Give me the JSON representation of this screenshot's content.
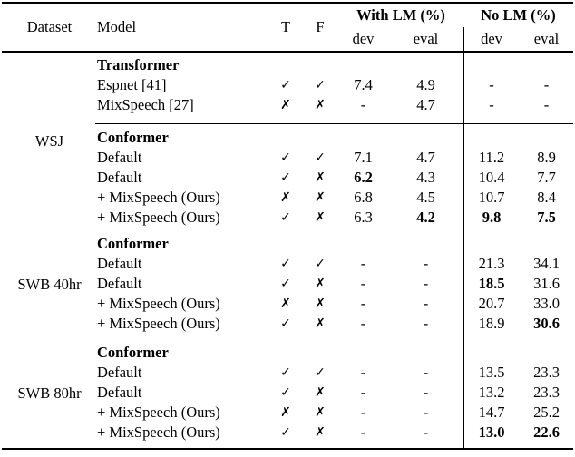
{
  "colors": {
    "text": "#000000",
    "background": "#ffffff",
    "rule": "#000000"
  },
  "table": {
    "header": {
      "dataset": "Dataset",
      "model": "Model",
      "t": "T",
      "f": "F",
      "group_with_lm": "With LM (%)",
      "group_no_lm": "No LM (%)",
      "sub_dev": "dev",
      "sub_eval": "eval"
    },
    "symbols": {
      "check": "✓",
      "cross": "✗"
    },
    "sections": [
      {
        "dataset": "WSJ",
        "rows": [
          {
            "type": "subheader",
            "label": "Transformer"
          },
          {
            "type": "data",
            "model": "Espnet [41]",
            "t": "check",
            "f": "check",
            "values": [
              {
                "v": "7.4"
              },
              {
                "v": "4.9"
              },
              {
                "v": "-"
              },
              {
                "v": "-"
              }
            ]
          },
          {
            "type": "data",
            "model": "MixSpeech [27]",
            "t": "cross",
            "f": "cross",
            "values": [
              {
                "v": "-"
              },
              {
                "v": "4.7"
              },
              {
                "v": "-"
              },
              {
                "v": "-"
              }
            ]
          },
          {
            "type": "midrule"
          },
          {
            "type": "subheader",
            "label": "Conformer"
          },
          {
            "type": "data",
            "model": "Default",
            "t": "check",
            "f": "check",
            "values": [
              {
                "v": "7.1"
              },
              {
                "v": "4.7"
              },
              {
                "v": "11.2"
              },
              {
                "v": "8.9"
              }
            ]
          },
          {
            "type": "data",
            "model": "Default",
            "t": "check",
            "f": "cross",
            "values": [
              {
                "v": "6.2",
                "b": true
              },
              {
                "v": "4.3"
              },
              {
                "v": "10.4"
              },
              {
                "v": "7.7"
              }
            ]
          },
          {
            "type": "data",
            "model": "+ MixSpeech (Ours)",
            "t": "cross",
            "f": "cross",
            "values": [
              {
                "v": "6.8"
              },
              {
                "v": "4.5"
              },
              {
                "v": "10.7"
              },
              {
                "v": "8.4"
              }
            ]
          },
          {
            "type": "data",
            "model": "+ MixSpeech (Ours)",
            "t": "check",
            "f": "cross",
            "values": [
              {
                "v": "6.3"
              },
              {
                "v": "4.2",
                "b": true
              },
              {
                "v": "9.8",
                "b": true
              },
              {
                "v": "7.5",
                "b": true
              }
            ]
          }
        ]
      },
      {
        "dataset": "SWB 40hr",
        "rows": [
          {
            "type": "subheader",
            "label": "Conformer"
          },
          {
            "type": "data",
            "model": "Default",
            "t": "check",
            "f": "check",
            "values": [
              {
                "v": "-"
              },
              {
                "v": "-"
              },
              {
                "v": "21.3"
              },
              {
                "v": "34.1"
              }
            ]
          },
          {
            "type": "data",
            "model": "Default",
            "t": "check",
            "f": "cross",
            "values": [
              {
                "v": "-"
              },
              {
                "v": "-"
              },
              {
                "v": "18.5",
                "b": true
              },
              {
                "v": "31.6"
              }
            ]
          },
          {
            "type": "data",
            "model": "+ MixSpeech (Ours)",
            "t": "cross",
            "f": "cross",
            "values": [
              {
                "v": "-"
              },
              {
                "v": "-"
              },
              {
                "v": "20.7"
              },
              {
                "v": "33.0"
              }
            ]
          },
          {
            "type": "data",
            "model": "+ MixSpeech (Ours)",
            "t": "check",
            "f": "cross",
            "values": [
              {
                "v": "-"
              },
              {
                "v": "-"
              },
              {
                "v": "18.9"
              },
              {
                "v": "30.6",
                "b": true
              }
            ]
          }
        ]
      },
      {
        "dataset": "SWB 80hr",
        "rows": [
          {
            "type": "subheader",
            "label": "Conformer"
          },
          {
            "type": "data",
            "model": "Default",
            "t": "check",
            "f": "check",
            "values": [
              {
                "v": "-"
              },
              {
                "v": "-"
              },
              {
                "v": "13.5"
              },
              {
                "v": "23.3"
              }
            ]
          },
          {
            "type": "data",
            "model": "Default",
            "t": "check",
            "f": "cross",
            "values": [
              {
                "v": "-"
              },
              {
                "v": "-"
              },
              {
                "v": "13.2"
              },
              {
                "v": "23.3"
              }
            ]
          },
          {
            "type": "data",
            "model": "+ MixSpeech (Ours)",
            "t": "cross",
            "f": "cross",
            "values": [
              {
                "v": "-"
              },
              {
                "v": "-"
              },
              {
                "v": "14.7"
              },
              {
                "v": "25.2"
              }
            ]
          },
          {
            "type": "data",
            "model": "+ MixSpeech (Ours)",
            "t": "check",
            "f": "cross",
            "values": [
              {
                "v": "-"
              },
              {
                "v": "-"
              },
              {
                "v": "13.0",
                "b": true
              },
              {
                "v": "22.6",
                "b": true
              }
            ]
          }
        ]
      }
    ]
  }
}
